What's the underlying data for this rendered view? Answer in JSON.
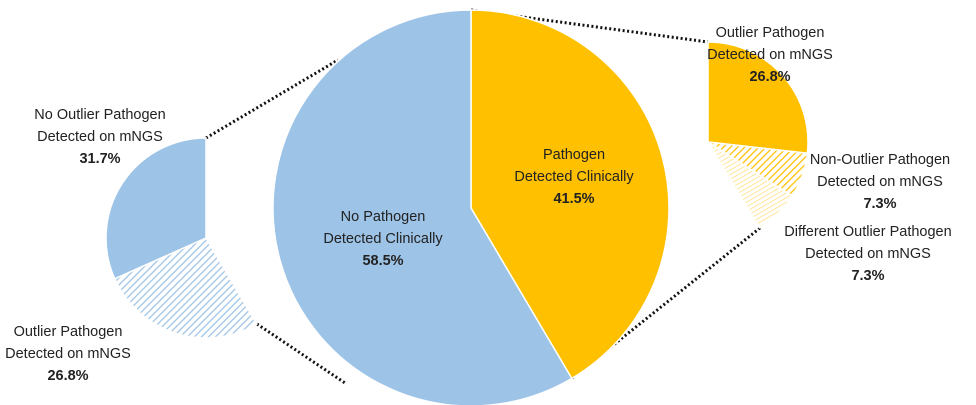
{
  "chart_data": [
    {
      "type": "pie",
      "direction": "clockwise",
      "categories": [
        [
          "Pathogen",
          "Detected Clinically"
        ],
        [
          "No Pathogen",
          "Detected Clinically"
        ]
      ],
      "values": [
        41.5,
        58.5
      ],
      "value_labels": [
        "41.5%",
        "58.5%"
      ],
      "colors": [
        "#FFC000",
        "#9DC3E6"
      ],
      "patterns": [
        "solid",
        "solid"
      ]
    },
    {
      "type": "pie",
      "direction": "counterclockwise",
      "categories": [
        [
          "No Outlier Pathogen",
          "Detected on mNGS"
        ],
        [
          "Outlier Pathogen",
          "Detected on mNGS"
        ]
      ],
      "values": [
        31.7,
        26.8
      ],
      "value_labels": [
        "31.7%",
        "26.8%"
      ],
      "colors": [
        "#9DC3E6",
        "#9DC3E6"
      ],
      "patterns": [
        "solid",
        "hatch"
      ]
    },
    {
      "type": "pie",
      "direction": "clockwise",
      "categories": [
        [
          "Outlier Pathogen",
          "Detected on mNGS"
        ],
        [
          "Non-Outlier Pathogen",
          "Detected on mNGS"
        ],
        [
          "Different Outlier Pathogen",
          "Detected on mNGS"
        ]
      ],
      "values": [
        26.8,
        7.3,
        7.3
      ],
      "value_labels": [
        "26.8%",
        "7.3%",
        "7.3%"
      ],
      "colors": [
        "#FFC000",
        "#FFC000",
        "#FFC000"
      ],
      "patterns": [
        "solid",
        "hatch",
        "crosshatch"
      ]
    }
  ]
}
